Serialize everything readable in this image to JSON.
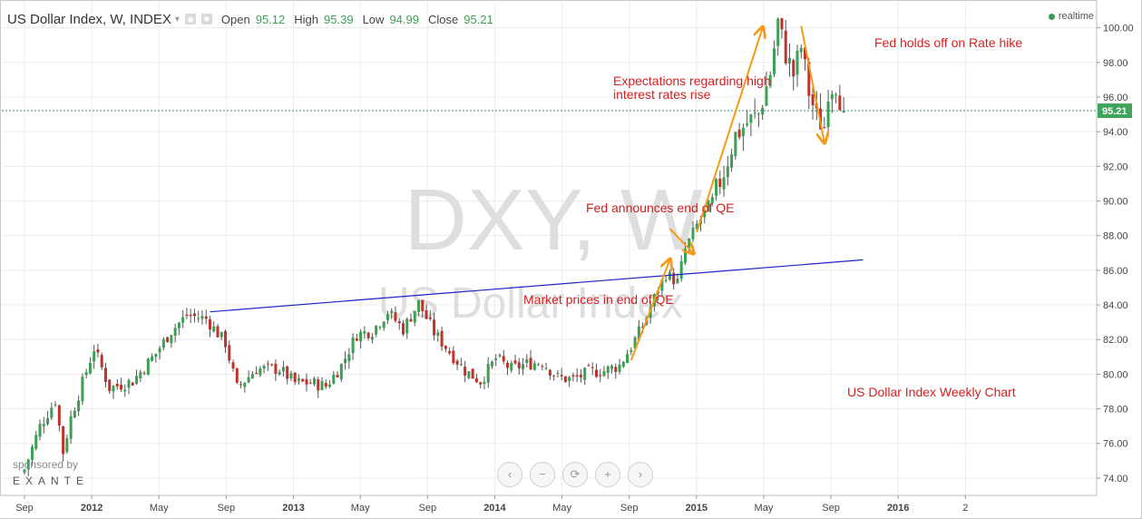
{
  "header": {
    "symbol": "US Dollar Index, W, INDEX",
    "caret": "▾",
    "icon1": "eye-icon",
    "icon2": "gear-icon",
    "open_label": "Open",
    "open_value": "95.12",
    "high_label": "High",
    "high_value": "95.39",
    "low_label": "Low",
    "low_value": "94.99",
    "close_label": "Close",
    "close_value": "95.21",
    "realtime": "realtime"
  },
  "sponsor": {
    "line1": "sponsored by",
    "brand": "EXANTE"
  },
  "nav_buttons": [
    {
      "name": "scroll-left-button",
      "glyph": "‹"
    },
    {
      "name": "zoom-out-button",
      "glyph": "−"
    },
    {
      "name": "reset-button",
      "glyph": "⟳"
    },
    {
      "name": "zoom-in-button",
      "glyph": "+"
    },
    {
      "name": "scroll-right-button",
      "glyph": "›"
    }
  ],
  "colors": {
    "up": "#3ba053",
    "down": "#c0332c",
    "wick": "#555555",
    "trendline": "#1c24c7",
    "arrow": "#f59a18",
    "annotation": "#d42020",
    "grid": "#ececec",
    "price_line": "#3b8b67",
    "last_price_bg": "#3fa45c",
    "watermark": "#dedede"
  },
  "chart_data": {
    "type": "candlestick",
    "title": "US Dollar Index Weekly Chart",
    "watermark": "DXY, W",
    "watermark_sub": "US Dollar Index",
    "ylim": [
      73,
      101.5
    ],
    "y_ticks": [
      "74.00",
      "76.00",
      "78.00",
      "80.00",
      "82.00",
      "84.00",
      "86.00",
      "88.00",
      "90.00",
      "92.00",
      "94.00",
      "96.00",
      "98.00",
      "100.00"
    ],
    "x_ticks": [
      "Sep",
      "2012",
      "May",
      "Sep",
      "2013",
      "May",
      "Sep",
      "2014",
      "May",
      "Sep",
      "2015",
      "May",
      "Sep",
      "2016",
      "2"
    ],
    "x_tick_weeks": [
      0,
      17.4,
      34.8,
      52.2,
      69.6,
      86.9,
      104.3,
      121.7,
      139.1,
      156.5,
      173.9,
      191.3,
      208.7,
      226.1,
      243.5
    ],
    "last_price": "95.21",
    "key_points": [
      [
        0,
        74.5
      ],
      [
        4,
        77
      ],
      [
        8,
        78.5
      ],
      [
        10,
        75.5
      ],
      [
        12,
        77.5
      ],
      [
        15,
        79.5
      ],
      [
        18,
        81.5
      ],
      [
        22,
        79.2
      ],
      [
        28,
        79.6
      ],
      [
        34,
        81.2
      ],
      [
        38,
        82.5
      ],
      [
        42,
        83.4
      ],
      [
        47,
        83.2
      ],
      [
        52,
        81.8
      ],
      [
        55,
        79.2
      ],
      [
        60,
        80.3
      ],
      [
        66,
        80.3
      ],
      [
        70,
        79.5
      ],
      [
        74,
        79.5
      ],
      [
        78,
        79.3
      ],
      [
        82,
        80.5
      ],
      [
        86,
        82.3
      ],
      [
        90,
        82.5
      ],
      [
        94,
        83.6
      ],
      [
        98,
        82.6
      ],
      [
        102,
        84.1
      ],
      [
        106,
        82.4
      ],
      [
        110,
        81.3
      ],
      [
        114,
        80.2
      ],
      [
        118,
        79.6
      ],
      [
        122,
        80.9
      ],
      [
        126,
        80.3
      ],
      [
        130,
        80.6
      ],
      [
        134,
        80.7
      ],
      [
        138,
        79.8
      ],
      [
        142,
        79.7
      ],
      [
        146,
        80.1
      ],
      [
        150,
        80.2
      ],
      [
        154,
        80.5
      ],
      [
        157,
        81.6
      ],
      [
        160,
        82.8
      ],
      [
        163,
        84.4
      ],
      [
        166,
        85.8
      ],
      [
        169,
        85.3
      ],
      [
        171,
        87.2
      ],
      [
        174,
        88.6
      ],
      [
        178,
        90.0
      ],
      [
        181,
        91.7
      ],
      [
        184,
        93.8
      ],
      [
        187,
        94.5
      ],
      [
        190,
        95.0
      ],
      [
        193,
        97.4
      ],
      [
        195,
        100.3
      ],
      [
        197,
        98.5
      ],
      [
        199,
        97.3
      ],
      [
        201,
        98.9
      ],
      [
        203,
        96.3
      ],
      [
        205,
        94.8
      ],
      [
        207,
        94.3
      ],
      [
        208,
        96.5
      ],
      [
        210,
        96.8
      ],
      [
        212,
        95.2
      ]
    ],
    "trendline": [
      [
        48,
        83.6
      ],
      [
        217,
        86.6
      ]
    ],
    "annotations": [
      {
        "text": "Expectations regarding high",
        "text2": "interest rates rise"
      },
      {
        "text": "Fed holds off on Rate hike"
      },
      {
        "text": "Fed announces end of QE"
      },
      {
        "text": "Market prices in end of QE"
      },
      {
        "text": "US Dollar Index Weekly Chart"
      }
    ],
    "arrows": [
      [
        [
          174,
          88.2
        ],
        [
          191,
          100.0
        ]
      ],
      [
        [
          201,
          100.1
        ],
        [
          207,
          93.4
        ]
      ],
      [
        [
          167,
          88.4
        ],
        [
          173,
          87.0
        ]
      ],
      [
        [
          157,
          80.8
        ],
        [
          167,
          86.6
        ]
      ]
    ]
  }
}
